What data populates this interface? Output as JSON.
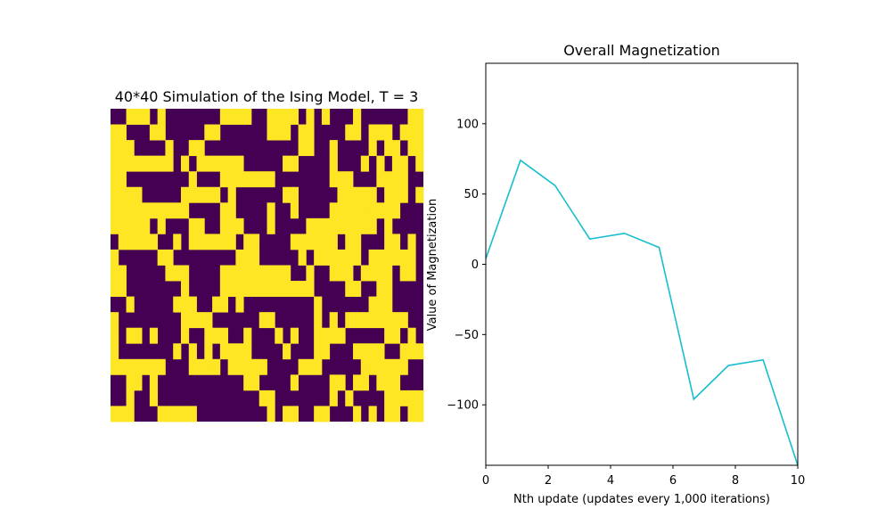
{
  "chart_data": [
    {
      "type": "heatmap",
      "title": "40*40 Simulation of the Ising Model, T = 3",
      "grid_size": [
        40,
        40
      ],
      "colors": {
        "spin_down": "#440154",
        "spin_up": "#fde725"
      },
      "cells": [
        "0011101000000011110011110101000100000011",
        "0011101000000011110011110101000100000011",
        "1100011000001100000011101100001101110111",
        "1100011000001100000011101100001101110111",
        "1110000100110000000000001100100001011011",
        "1110000100110000000000001100100001011011",
        "1111111101011111100000110000100010101101",
        "1111111101011111100000110000100010101101",
        "1100000000100011111110000000111000111100",
        "1100000000100011111110000000111000111100",
        "1111000001111101000000110000011111011101",
        "1111000001111101000000110000011111011101",
        "1111111111000011000010010000111111111000",
        "1111111111000011000010010000111111111000",
        "1111101000110011100010000111111111010000",
        "1111101000110011100010000111111111010000",
        "0111110010111111011000011111101100011010",
        "0111110010111111011000011111101100011010",
        "1000001100000000111000001011111101111110",
        "1000001100000000111000001011111101111110",
        "1100000111000011111111100100111011110110",
        "1100000111000011111111100100111011110110",
        "1100000001000011111111111100001100110000",
        "1100000001000011111111111100001100110000",
        "0010000011100110100000000010000001110000",
        "0010000011100110100000000010000001110000",
        "1000000001111000000110000010101111111100",
        "1000000001111000000110000010101111111100",
        "1011010001001110010001010011110000011010",
        "1011010001001110010001010011110000011010",
        "1000000010101011110000100011000111100111",
        "1000000010101011110000100011000111100111",
        "1111111000111101111100001110000011111100",
        "1111111000111101111100001110000011111100",
        "0011010000000000011000010000110110111000",
        "0011010000000000011000010000110110111000",
        "0010010000000000000110000000101000011111",
        "0010010000000000000110000000101000011111",
        "1110001111100000000010110011000101011011",
        "1110001111100000000010110011000101011011"
      ]
    },
    {
      "type": "line",
      "title": "Overall Magnetization",
      "xlabel": "Nth update (updates every 1,000 iterations)",
      "ylabel": "Value of Magnetization",
      "xlim": [
        0,
        10
      ],
      "ylim": [
        -143,
        143
      ],
      "xticks": [
        "0",
        "2",
        "4",
        "6",
        "8",
        "10"
      ],
      "yticks": [
        "100",
        "50",
        "0",
        "−50",
        "−100"
      ],
      "xtick_values": [
        0,
        2,
        4,
        6,
        8,
        10
      ],
      "ytick_values": [
        100,
        50,
        0,
        -50,
        -100
      ],
      "grid": false,
      "line_color": "#17becf",
      "series": [
        {
          "x": [
            0,
            1.111,
            2.222,
            3.333,
            4.444,
            5.556,
            6.667,
            7.778,
            8.889,
            10
          ],
          "values": [
            4,
            74,
            56,
            18,
            22,
            12,
            -96,
            -72,
            -68,
            -143
          ]
        }
      ]
    }
  ]
}
